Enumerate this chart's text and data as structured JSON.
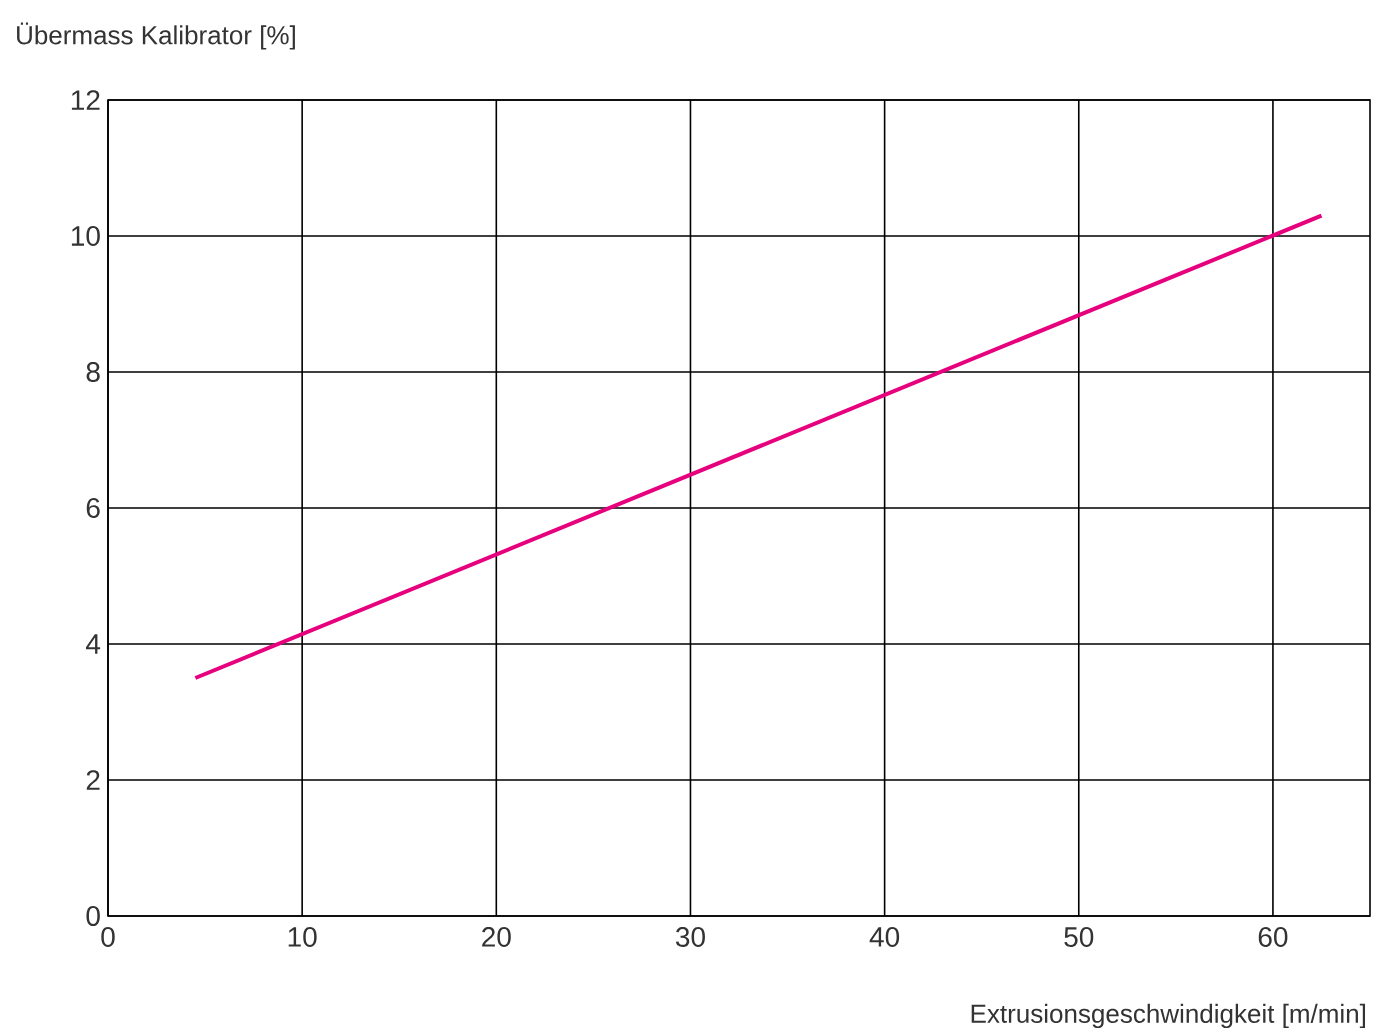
{
  "chart_data": {
    "type": "line",
    "xlabel": "Extrusionsgeschwindigkeit [m/min]",
    "ylabel": "Übermass Kalibrator [%]",
    "xlim": [
      0,
      65
    ],
    "ylim": [
      0,
      12
    ],
    "xticks": [
      0,
      10,
      20,
      30,
      40,
      50,
      60
    ],
    "yticks": [
      0,
      2,
      4,
      6,
      8,
      10,
      12
    ],
    "grid": true,
    "series": [
      {
        "color": "#e6007e",
        "x": [
          4.5,
          62.5
        ],
        "values": [
          3.5,
          10.3
        ]
      }
    ]
  }
}
